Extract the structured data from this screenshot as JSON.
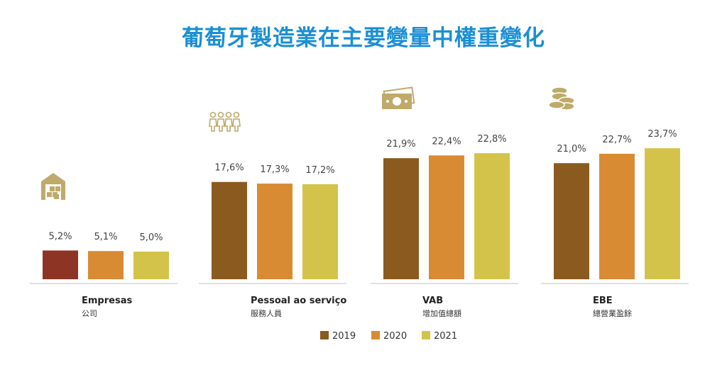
{
  "title": "葡萄牙製造業在主要變量中權重變化",
  "chart_data": {
    "type": "bar",
    "title": "葡萄牙製造業在主要變量中權重變化",
    "categories": [
      {
        "name": "Empresas",
        "subtitle": "公司",
        "icon": "warehouse-icon"
      },
      {
        "name": "Pessoal ao serviço",
        "subtitle": "服務人員",
        "icon": "people-icon"
      },
      {
        "name": "VAB",
        "subtitle": "增加值總額",
        "icon": "banknote-icon"
      },
      {
        "name": "EBE",
        "subtitle": "總營業盈餘",
        "icon": "coins-icon"
      }
    ],
    "series": [
      {
        "name": "2019",
        "color": "#8a5a1f",
        "values": [
          5.2,
          17.6,
          21.9,
          21.0
        ],
        "labels": [
          "5,2%",
          "17,6%",
          "21,9%",
          "21,0%"
        ]
      },
      {
        "name": "2020",
        "color": "#d98b33",
        "values": [
          5.1,
          17.3,
          22.4,
          22.7
        ],
        "labels": [
          "5,1%",
          "17,3%",
          "22,4%",
          "22,7%"
        ]
      },
      {
        "name": "2021",
        "color": "#d4c34a",
        "values": [
          5.0,
          17.2,
          22.8,
          23.7
        ],
        "labels": [
          "5,0%",
          "17,2%",
          "22,8%",
          "23,7%"
        ]
      }
    ],
    "highlight": {
      "series": 0,
      "category": 0,
      "color": "#8e3424"
    },
    "unit": "%",
    "legend_position": "bottom",
    "grid": false,
    "icon_color": "#bfaa6a"
  }
}
